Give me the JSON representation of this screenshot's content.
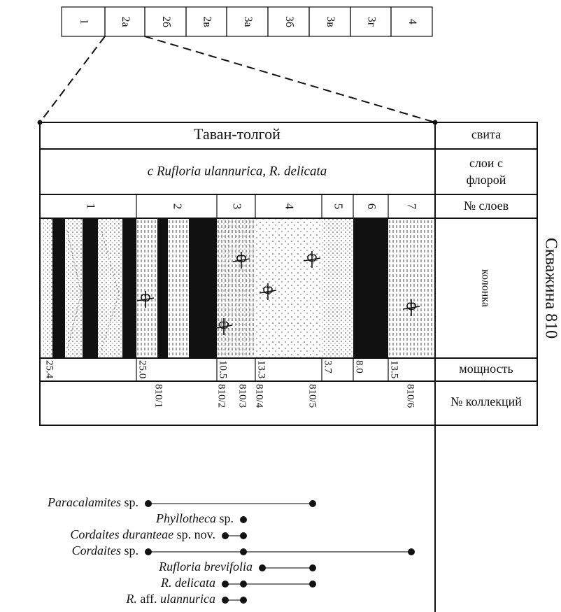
{
  "top_strip": {
    "cells": [
      "1",
      "2а",
      "2б",
      "2в",
      "3а",
      "3б",
      "3в",
      "3г",
      "4"
    ]
  },
  "section": {
    "suite": "Таван-толгой",
    "flora_layers": "с Rufloria ulannurica, R. delicata",
    "layers": [
      "1",
      "2",
      "3",
      "4",
      "5",
      "6",
      "7"
    ],
    "thickness": [
      "25.4",
      "25.0",
      "10.5",
      "13.3",
      "3.7",
      "8.0",
      "13.5"
    ],
    "collections": [
      "810/1",
      "810/2",
      "810/3",
      "810/4",
      "810/5",
      "810/6"
    ]
  },
  "row_labels": {
    "suite": "свита",
    "flora": [
      "слои с",
      "флорой"
    ],
    "layers": "№ слоев",
    "column": "колонка",
    "thickness": "мощность",
    "collections": "№ коллекций"
  },
  "well": "Скважина 810",
  "taxa": [
    {
      "parts": [
        {
          "text": "Paracalamites",
          "italic": true
        },
        {
          "text": "sp.",
          "italic": false
        }
      ]
    },
    {
      "parts": [
        {
          "text": "Phyllotheca",
          "italic": true
        },
        {
          "text": "sp.",
          "italic": false
        }
      ]
    },
    {
      "parts": [
        {
          "text": "Cordaites duranteae",
          "italic": true
        },
        {
          "text": "sp. nov.",
          "italic": false
        }
      ]
    },
    {
      "parts": [
        {
          "text": "Cordaites",
          "italic": true
        },
        {
          "text": "sp.",
          "italic": false
        }
      ]
    },
    {
      "parts": [
        {
          "text": "Rufloria brevifolia",
          "italic": true
        }
      ]
    },
    {
      "parts": [
        {
          "text": "R. delicata",
          "italic": true
        }
      ]
    },
    {
      "parts": [
        {
          "text": "R.",
          "italic": true
        },
        {
          "text": "aff.",
          "italic": false
        },
        {
          "text": "ulannurica",
          "italic": true
        }
      ]
    }
  ]
}
